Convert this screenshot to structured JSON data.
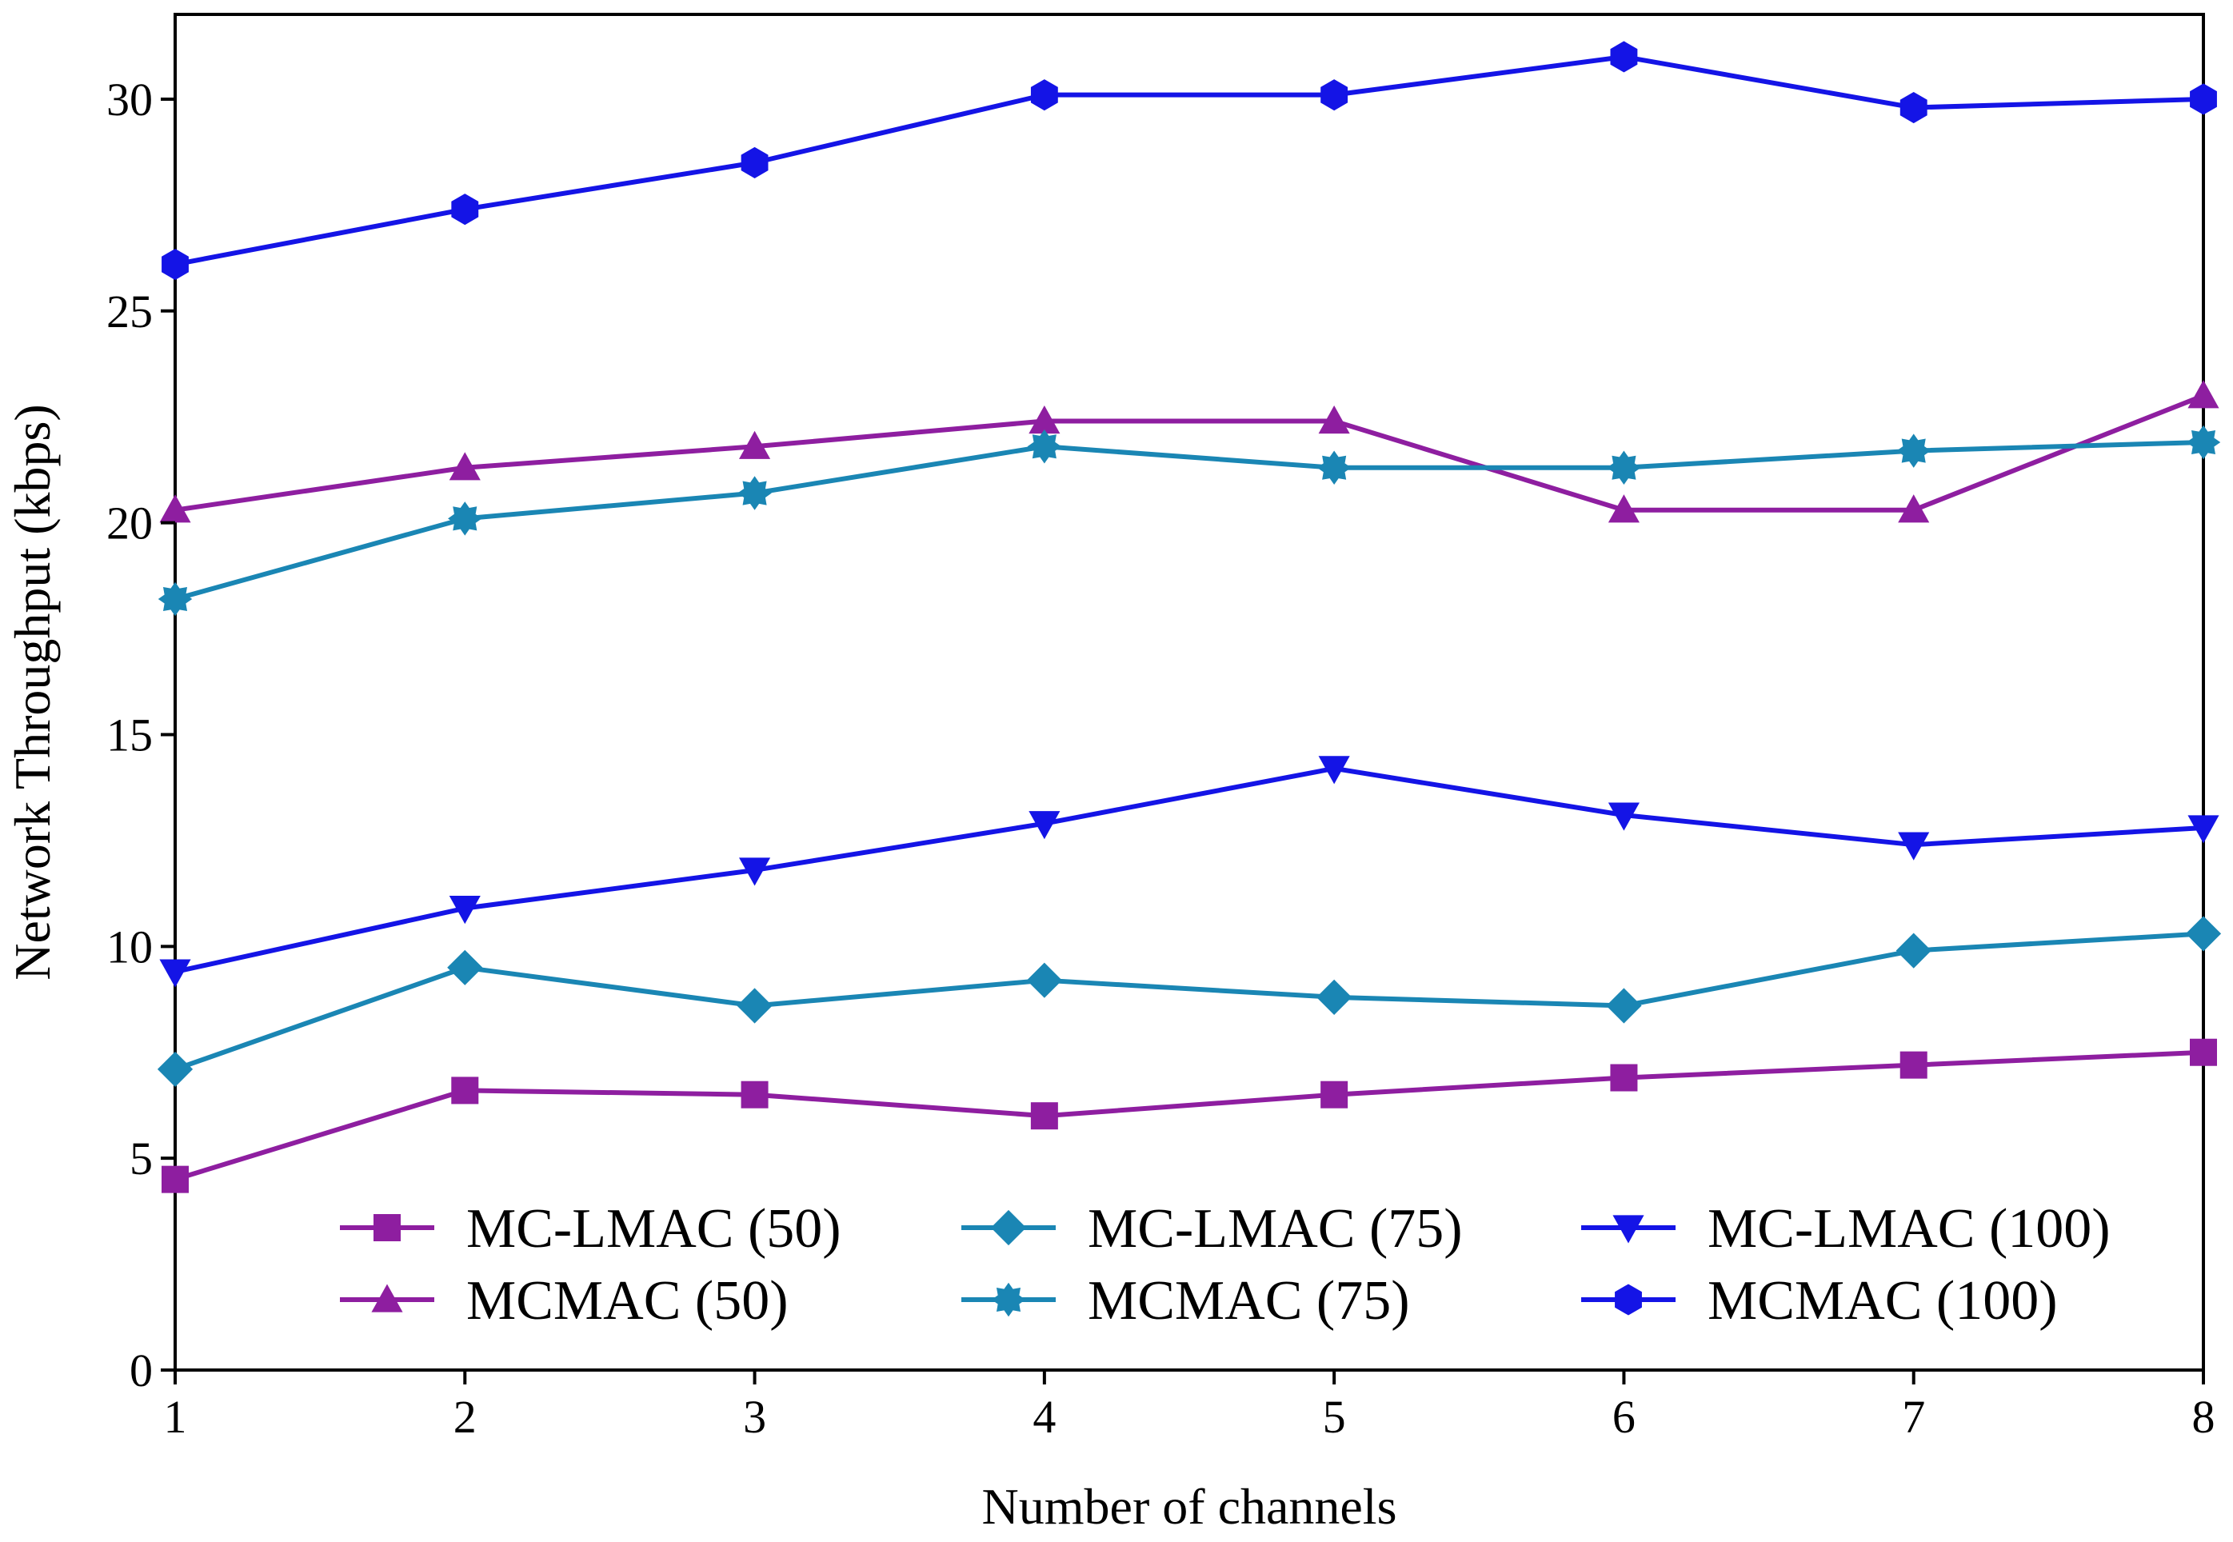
{
  "chart_data": {
    "type": "line",
    "xlabel": "Number of channels",
    "ylabel": "Network Throughput (kbps)",
    "x": [
      1,
      2,
      3,
      4,
      5,
      6,
      7,
      8
    ],
    "xlim": [
      1,
      8
    ],
    "ylim": [
      0,
      32
    ],
    "x_ticks": [
      "1",
      "2",
      "3",
      "4",
      "5",
      "6",
      "7",
      "8"
    ],
    "y_ticks": [
      "0",
      "5",
      "10",
      "15",
      "20",
      "25",
      "30"
    ],
    "y_tick_values": [
      0,
      5,
      10,
      15,
      20,
      25,
      30
    ],
    "grid": false,
    "legend_position": "bottom, three columns",
    "series": [
      {
        "name": "MC-LMAC (50)",
        "marker": "square",
        "color": "#8e1ea0",
        "values": [
          4.5,
          6.6,
          6.5,
          6.0,
          6.5,
          6.9,
          7.2,
          7.5
        ]
      },
      {
        "name": "MCMAC (50)",
        "marker": "triangle-up",
        "color": "#8e1ea0",
        "values": [
          20.3,
          21.3,
          21.8,
          22.4,
          22.4,
          20.3,
          20.3,
          23.0
        ]
      },
      {
        "name": "MC-LMAC (75)",
        "marker": "diamond",
        "color": "#1a86b4",
        "values": [
          7.1,
          9.5,
          8.6,
          9.2,
          8.8,
          8.6,
          9.9,
          10.3
        ]
      },
      {
        "name": "MCMAC (75)",
        "marker": "star",
        "color": "#1a86b4",
        "values": [
          18.2,
          20.1,
          20.7,
          21.8,
          21.3,
          21.3,
          21.7,
          21.9
        ]
      },
      {
        "name": "MC-LMAC (100)",
        "marker": "triangle-down",
        "color": "#1414e6",
        "values": [
          9.4,
          10.9,
          11.8,
          12.9,
          14.2,
          13.1,
          12.4,
          12.8
        ]
      },
      {
        "name": "MCMAC (100)",
        "marker": "hexagon",
        "color": "#1414e6",
        "values": [
          26.1,
          27.4,
          28.5,
          30.1,
          30.1,
          31.0,
          29.8,
          30.0
        ]
      }
    ]
  }
}
